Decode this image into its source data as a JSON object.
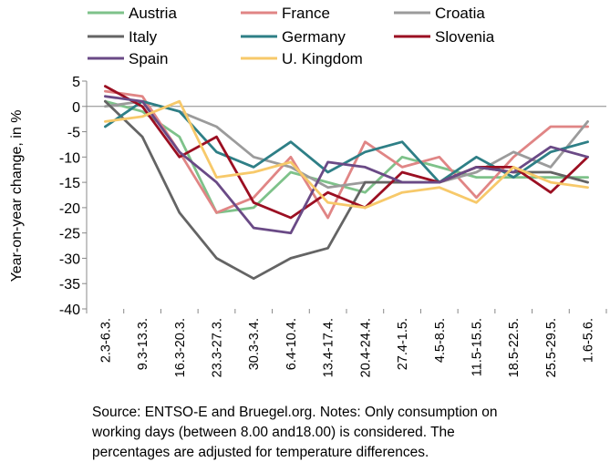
{
  "chart_data": {
    "type": "line",
    "ylabel": "Year-on-year change, in %",
    "ylim": [
      -40,
      5
    ],
    "yticks": [
      5,
      0,
      -5,
      -10,
      -15,
      -20,
      -25,
      -30,
      -35,
      -40
    ],
    "grid": false,
    "legend_position": "top",
    "categories": [
      "2.3-6.3.",
      "9.3-13.3.",
      "16.3-20.3.",
      "23.3-27.3.",
      "30.3-3.4.",
      "6.4-10.4.",
      "13.4-17.4.",
      "20.4-24.4.",
      "27.4-1.5.",
      "4.5-8.5.",
      "11.5-15.5.",
      "18.5-22.5.",
      "25.5-29.5.",
      "1.6-5.6."
    ],
    "series": [
      {
        "name": "Austria",
        "color": "#7ec28a",
        "values": [
          1,
          -1,
          -6,
          -21,
          -20,
          -13,
          -15,
          -17,
          -10,
          -12,
          -14,
          -14,
          -14,
          -14
        ]
      },
      {
        "name": "France",
        "color": "#e08585",
        "values": [
          3,
          2,
          -9,
          -21,
          -18,
          -10,
          -22,
          -7,
          -12,
          -10,
          -18,
          -10,
          -4,
          -4
        ]
      },
      {
        "name": "Croatia",
        "color": "#9b9b9b",
        "values": [
          0,
          1,
          -1,
          -4,
          -10,
          -12,
          -16,
          -15,
          -15,
          -15,
          -13,
          -9,
          -12,
          -3
        ]
      },
      {
        "name": "Italy",
        "color": "#646464",
        "values": [
          1,
          -6,
          -21,
          -30,
          -34,
          -30,
          -28,
          -15,
          -15,
          -15,
          -12,
          -13,
          -13,
          -15
        ]
      },
      {
        "name": "Germany",
        "color": "#2e7f86",
        "values": [
          -4,
          1,
          -1,
          -9,
          -12,
          -7,
          -13,
          -9,
          -7,
          -15,
          -10,
          -14,
          -9,
          -7
        ]
      },
      {
        "name": "Slovenia",
        "color": "#9b0f22",
        "values": [
          4,
          0,
          -10,
          -6,
          -19,
          -22,
          -17,
          -20,
          -13,
          -15,
          -12,
          -12,
          -17,
          -10
        ]
      },
      {
        "name": "Spain",
        "color": "#6a4a86",
        "values": [
          2,
          1,
          -9,
          -15,
          -24,
          -25,
          -11,
          -12,
          -15,
          -15,
          -12,
          -13,
          -8,
          -10
        ]
      },
      {
        "name": "U. Kingdom",
        "color": "#f7c96a",
        "values": [
          -3,
          -2,
          1,
          -14,
          -13,
          -11,
          -19,
          -20,
          -17,
          -16,
          -19,
          -12,
          -15,
          -16
        ]
      }
    ]
  },
  "note_lines": [
    "Source: ENTSO-E and Bruegel.org. Notes: Only consumption on",
    "working days (between 8.00 and18.00) is considered. The",
    "percentages are adjusted for temperature differences."
  ]
}
